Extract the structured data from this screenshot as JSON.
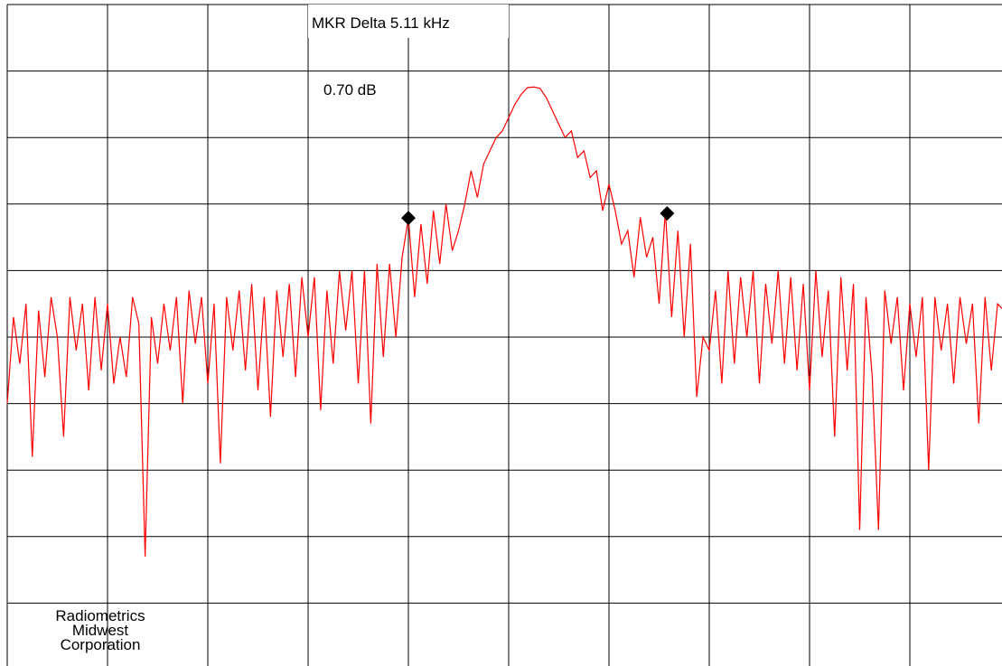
{
  "chart_data": {
    "type": "line",
    "annotations": {
      "marker_delta": "MKR Delta  5.11 kHz",
      "marker_level": "0.70 dB"
    },
    "footer": [
      "Radiometrics",
      "Midwest",
      "Corporation"
    ],
    "xlim": [
      0,
      10
    ],
    "ylim": [
      0,
      10
    ],
    "grid": {
      "x_divisions": 10,
      "y_divisions": 10,
      "color": "#000000"
    },
    "x": [
      0,
      0.0625,
      0.125,
      0.1875,
      0.25,
      0.3125,
      0.375,
      0.4375,
      0.5,
      0.5625,
      0.625,
      0.6875,
      0.75,
      0.8125,
      0.875,
      0.9375,
      1,
      1.0625,
      1.125,
      1.1875,
      1.25,
      1.3125,
      1.375,
      1.4375,
      1.5,
      1.5625,
      1.625,
      1.6875,
      1.75,
      1.8125,
      1.875,
      1.9375,
      2,
      2.0625,
      2.125,
      2.1875,
      2.25,
      2.3125,
      2.375,
      2.4375,
      2.5,
      2.5625,
      2.625,
      2.6875,
      2.75,
      2.8125,
      2.875,
      2.9375,
      3,
      3.0625,
      3.125,
      3.1875,
      3.25,
      3.3125,
      3.375,
      3.4375,
      3.5,
      3.5625,
      3.625,
      3.6875,
      3.75,
      3.8125,
      3.875,
      3.9375,
      4,
      4.0625,
      4.125,
      4.1875,
      4.25,
      4.3125,
      4.375,
      4.4375,
      4.5,
      4.5625,
      4.625,
      4.6875,
      4.75,
      4.8125,
      4.875,
      4.9375,
      5,
      5.0625,
      5.125,
      5.1875,
      5.25,
      5.3125,
      5.375,
      5.4375,
      5.5,
      5.5625,
      5.625,
      5.6875,
      5.75,
      5.8125,
      5.875,
      5.9375,
      6,
      6.0625,
      6.125,
      6.1875,
      6.25,
      6.3125,
      6.375,
      6.4375,
      6.5,
      6.5625,
      6.625,
      6.6875,
      6.75,
      6.8125,
      6.875,
      6.9375,
      7,
      7.0625,
      7.125,
      7.1875,
      7.25,
      7.3125,
      7.375,
      7.4375,
      7.5,
      7.5625,
      7.625,
      7.6875,
      7.75,
      7.8125,
      7.875,
      7.9375,
      8,
      8.0625,
      8.125,
      8.1875,
      8.25,
      8.3125,
      8.375,
      8.4375,
      8.5,
      8.5625,
      8.625,
      8.6875,
      8.75,
      8.8125,
      8.875,
      8.9375,
      9,
      9.0625,
      9.125,
      9.1875,
      9.25,
      9.3125,
      9.375,
      9.4375,
      9.5,
      9.5625,
      9.625,
      9.6875,
      9.75,
      9.8125,
      9.875,
      9.9375,
      10
    ],
    "series": [
      {
        "color": "#ff0000",
        "values": [
          4.0,
          5.3,
          4.6,
          5.5,
          3.2,
          5.4,
          4.4,
          5.6,
          5.0,
          3.5,
          5.6,
          4.8,
          5.5,
          4.2,
          5.6,
          4.5,
          5.5,
          4.3,
          5.0,
          4.4,
          5.6,
          5.2,
          1.7,
          5.3,
          4.6,
          5.5,
          4.8,
          5.6,
          4.0,
          5.7,
          4.9,
          5.6,
          4.3,
          5.5,
          3.1,
          5.6,
          4.8,
          5.7,
          4.5,
          5.8,
          4.2,
          5.6,
          3.8,
          5.7,
          4.7,
          5.8,
          4.4,
          5.9,
          5.0,
          5.9,
          3.9,
          5.7,
          4.6,
          6.0,
          5.1,
          6.0,
          4.3,
          6.0,
          3.7,
          6.1,
          4.7,
          6.1,
          5.0,
          6.2,
          6.79,
          5.6,
          6.7,
          5.8,
          6.9,
          6.1,
          7.0,
          6.3,
          6.6,
          7.0,
          7.5,
          7.1,
          7.6,
          7.8,
          8.0,
          8.1,
          8.3,
          8.5,
          8.65,
          8.75,
          8.76,
          8.74,
          8.6,
          8.4,
          8.2,
          8.0,
          8.1,
          7.7,
          7.8,
          7.4,
          7.5,
          6.9,
          7.3,
          6.9,
          6.4,
          6.6,
          5.9,
          6.8,
          6.2,
          6.5,
          5.5,
          6.9,
          5.3,
          6.6,
          5.0,
          6.4,
          4.1,
          5.0,
          4.8,
          5.7,
          4.3,
          6.0,
          4.6,
          5.9,
          5.0,
          6.0,
          4.3,
          5.8,
          4.9,
          6.0,
          4.6,
          5.9,
          4.5,
          5.8,
          4.2,
          6.0,
          4.7,
          5.7,
          3.5,
          5.9,
          4.5,
          5.8,
          2.1,
          5.6,
          4.4,
          2.1,
          5.7,
          4.9,
          5.6,
          4.2,
          5.5,
          4.7,
          5.6,
          3.0,
          5.6,
          4.8,
          5.5,
          4.3,
          5.6,
          4.9,
          5.5,
          3.7,
          5.6,
          4.5,
          5.5,
          5.4,
          5.4
        ]
      }
    ],
    "markers": {
      "color": "#000000",
      "x": [
        4.0,
        6.58
      ],
      "y": [
        6.79,
        6.86
      ]
    }
  }
}
